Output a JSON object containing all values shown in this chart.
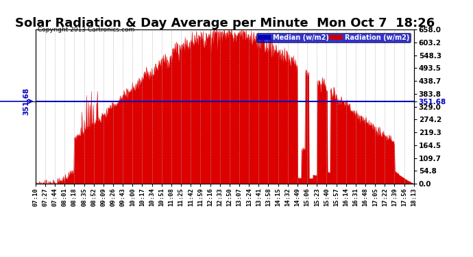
{
  "title": "Solar Radiation & Day Average per Minute  Mon Oct 7  18:26",
  "copyright": "Copyright 2013 Cartronics.com",
  "ylim": [
    0,
    658.0
  ],
  "yticks": [
    0.0,
    54.8,
    109.7,
    164.5,
    219.3,
    274.2,
    329.0,
    383.8,
    438.7,
    493.5,
    548.3,
    603.2,
    658.0
  ],
  "median_value": 351.68,
  "legend_median_label": "Median (w/m2)",
  "legend_radiation_label": "Radiation (w/m2)",
  "legend_median_color": "#0000bb",
  "legend_radiation_color": "#cc0000",
  "fill_color": "#dd0000",
  "median_line_color": "#0000bb",
  "background_color": "#ffffff",
  "grid_color": "#aaaaaa",
  "title_fontsize": 13,
  "tick_fontsize": 7.5,
  "xtick_labels": [
    "07:10",
    "07:27",
    "07:44",
    "08:01",
    "08:18",
    "08:35",
    "08:52",
    "09:09",
    "09:26",
    "09:43",
    "10:00",
    "10:17",
    "10:34",
    "10:51",
    "11:08",
    "11:25",
    "11:42",
    "11:59",
    "12:16",
    "12:33",
    "12:50",
    "13:07",
    "13:24",
    "13:41",
    "13:58",
    "14:15",
    "14:32",
    "14:49",
    "15:06",
    "15:23",
    "15:40",
    "15:57",
    "16:14",
    "16:31",
    "16:48",
    "17:05",
    "17:22",
    "17:39",
    "17:56",
    "18:13"
  ]
}
